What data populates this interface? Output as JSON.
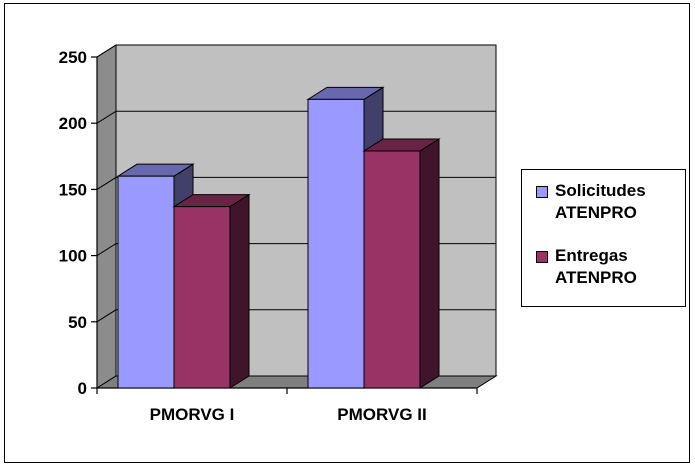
{
  "chart_data": {
    "type": "bar",
    "title": "",
    "xlabel": "",
    "ylabel": "",
    "categories": [
      "PMORVG I",
      "PMORVG II"
    ],
    "series": [
      {
        "name": [
          "Solicitudes",
          "ATENPRO"
        ],
        "values": [
          160,
          218
        ],
        "color": "#9999ff"
      },
      {
        "name": [
          "Entregas",
          "ATENPRO"
        ],
        "values": [
          137,
          179
        ],
        "color": "#993366"
      }
    ],
    "ylim": [
      0,
      250
    ],
    "yticks": [
      "0",
      "50",
      "100",
      "150",
      "200",
      "250"
    ],
    "grid": true,
    "three_d": true,
    "legend_position": "right"
  }
}
